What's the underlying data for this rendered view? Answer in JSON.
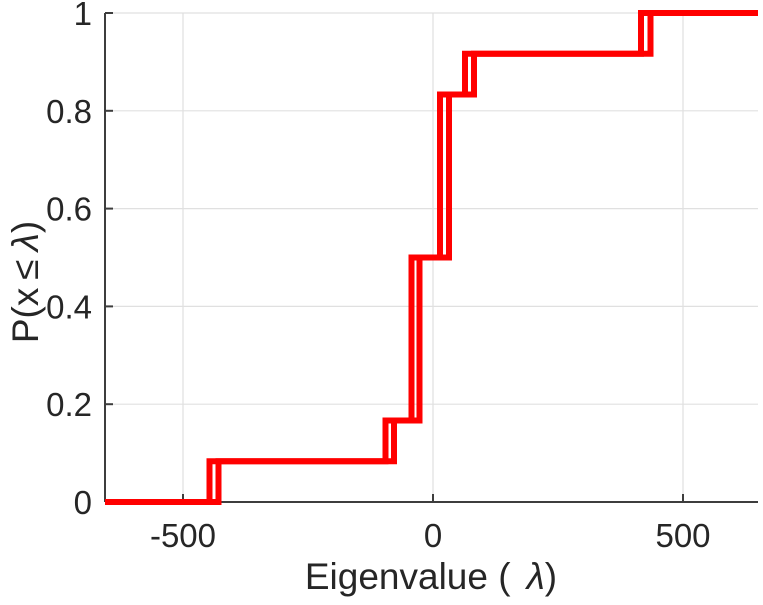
{
  "figure": {
    "background": "#ffffff"
  },
  "chart_data": {
    "type": "line",
    "subtype": "empirical-cdf-stairs",
    "title": "",
    "xlabel": "Eigenvalue ( λ)",
    "ylabel": "P(x ≤ λ)",
    "xlabel_parts": {
      "prefix": "Eigenvalue (",
      "lambda": "λ",
      "suffix": ")"
    },
    "ylabel_parts": {
      "prefix": "P(x",
      "leq": "≤",
      "lambda": "λ",
      "suffix": ")"
    },
    "xlim": [
      -656,
      650
    ],
    "ylim": [
      0,
      1
    ],
    "xticks": [
      -500,
      0,
      500
    ],
    "xtick_labels": [
      "-500",
      "0",
      "500"
    ],
    "yticks": [
      0,
      0.2,
      0.4,
      0.6,
      0.8,
      1
    ],
    "ytick_labels": [
      "0",
      "0.2",
      "0.4",
      "0.6",
      "0.8",
      "1"
    ],
    "grid": true,
    "legend": null,
    "line_color": "#ff0000",
    "line_width": 6,
    "axis_color": "#3d3d3d",
    "grid_color": "#e0e0e0",
    "tick_label_color": "#262626",
    "label_color": "#262626",
    "series": [
      {
        "name": "ecdf-curve-1",
        "color": "#ff0000",
        "start_level": 0,
        "jump_x": [
          -447,
          -95,
          -43,
          14,
          64,
          416
        ],
        "levels_after_jump": [
          0.0833,
          0.1667,
          0.5,
          0.8333,
          0.9167,
          1
        ]
      },
      {
        "name": "ecdf-curve-2",
        "color": "#ff0000",
        "start_level": 0,
        "jump_x": [
          -429,
          -78,
          -27,
          32,
          82,
          435
        ],
        "levels_after_jump": [
          0.0833,
          0.1667,
          0.5,
          0.8333,
          0.9167,
          1
        ]
      }
    ]
  }
}
